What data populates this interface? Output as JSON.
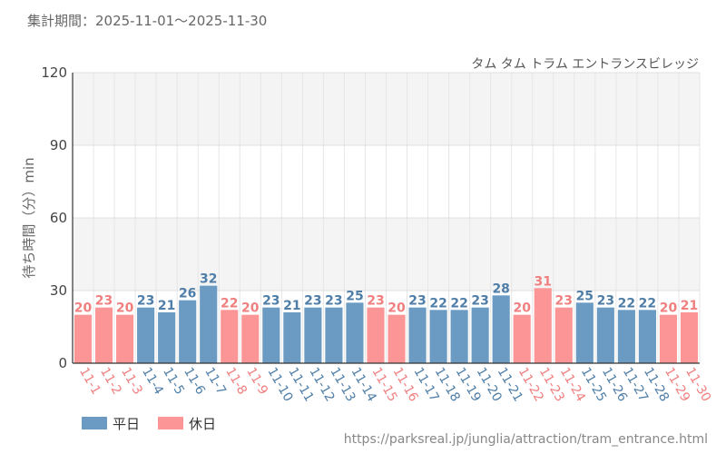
{
  "header": {
    "period_label": "集計期間：2025-11-01〜2025-11-30",
    "attraction_name": "タム タム トラム エントランスビレッジ"
  },
  "footer": {
    "source_url": "https://parksreal.jp/junglia/attraction/tram_entrance.html"
  },
  "colors": {
    "weekday": "#6b9bc3",
    "holiday": "#fc9595",
    "weekday_text": "#4f7ea8",
    "holiday_text": "#f07f7f"
  },
  "chart_data": {
    "type": "bar",
    "title": "タム タム トラム エントランスビレッジ",
    "xlabel": "",
    "ylabel": "待ち時間（分）min",
    "ylim": [
      0,
      120
    ],
    "yticks": [
      0,
      30,
      60,
      90,
      120
    ],
    "categories": [
      "11-1",
      "11-2",
      "11-3",
      "11-4",
      "11-5",
      "11-6",
      "11-7",
      "11-8",
      "11-9",
      "11-10",
      "11-11",
      "11-12",
      "11-13",
      "11-14",
      "11-15",
      "11-16",
      "11-17",
      "11-18",
      "11-19",
      "11-20",
      "11-21",
      "11-22",
      "11-23",
      "11-24",
      "11-25",
      "11-26",
      "11-27",
      "11-28",
      "11-29",
      "11-30"
    ],
    "values": [
      20,
      23,
      20,
      23,
      21,
      26,
      32,
      22,
      20,
      23,
      21,
      23,
      23,
      25,
      23,
      20,
      23,
      22,
      22,
      23,
      28,
      20,
      31,
      23,
      25,
      23,
      22,
      22,
      20,
      21
    ],
    "day_type": [
      "holiday",
      "holiday",
      "holiday",
      "weekday",
      "weekday",
      "weekday",
      "weekday",
      "holiday",
      "holiday",
      "weekday",
      "weekday",
      "weekday",
      "weekday",
      "weekday",
      "holiday",
      "holiday",
      "weekday",
      "weekday",
      "weekday",
      "weekday",
      "weekday",
      "holiday",
      "holiday",
      "holiday",
      "weekday",
      "weekday",
      "weekday",
      "weekday",
      "holiday",
      "holiday"
    ],
    "legend": [
      {
        "key": "weekday",
        "label": "平日"
      },
      {
        "key": "holiday",
        "label": "休日"
      }
    ],
    "legend_position": "bottom-left"
  }
}
